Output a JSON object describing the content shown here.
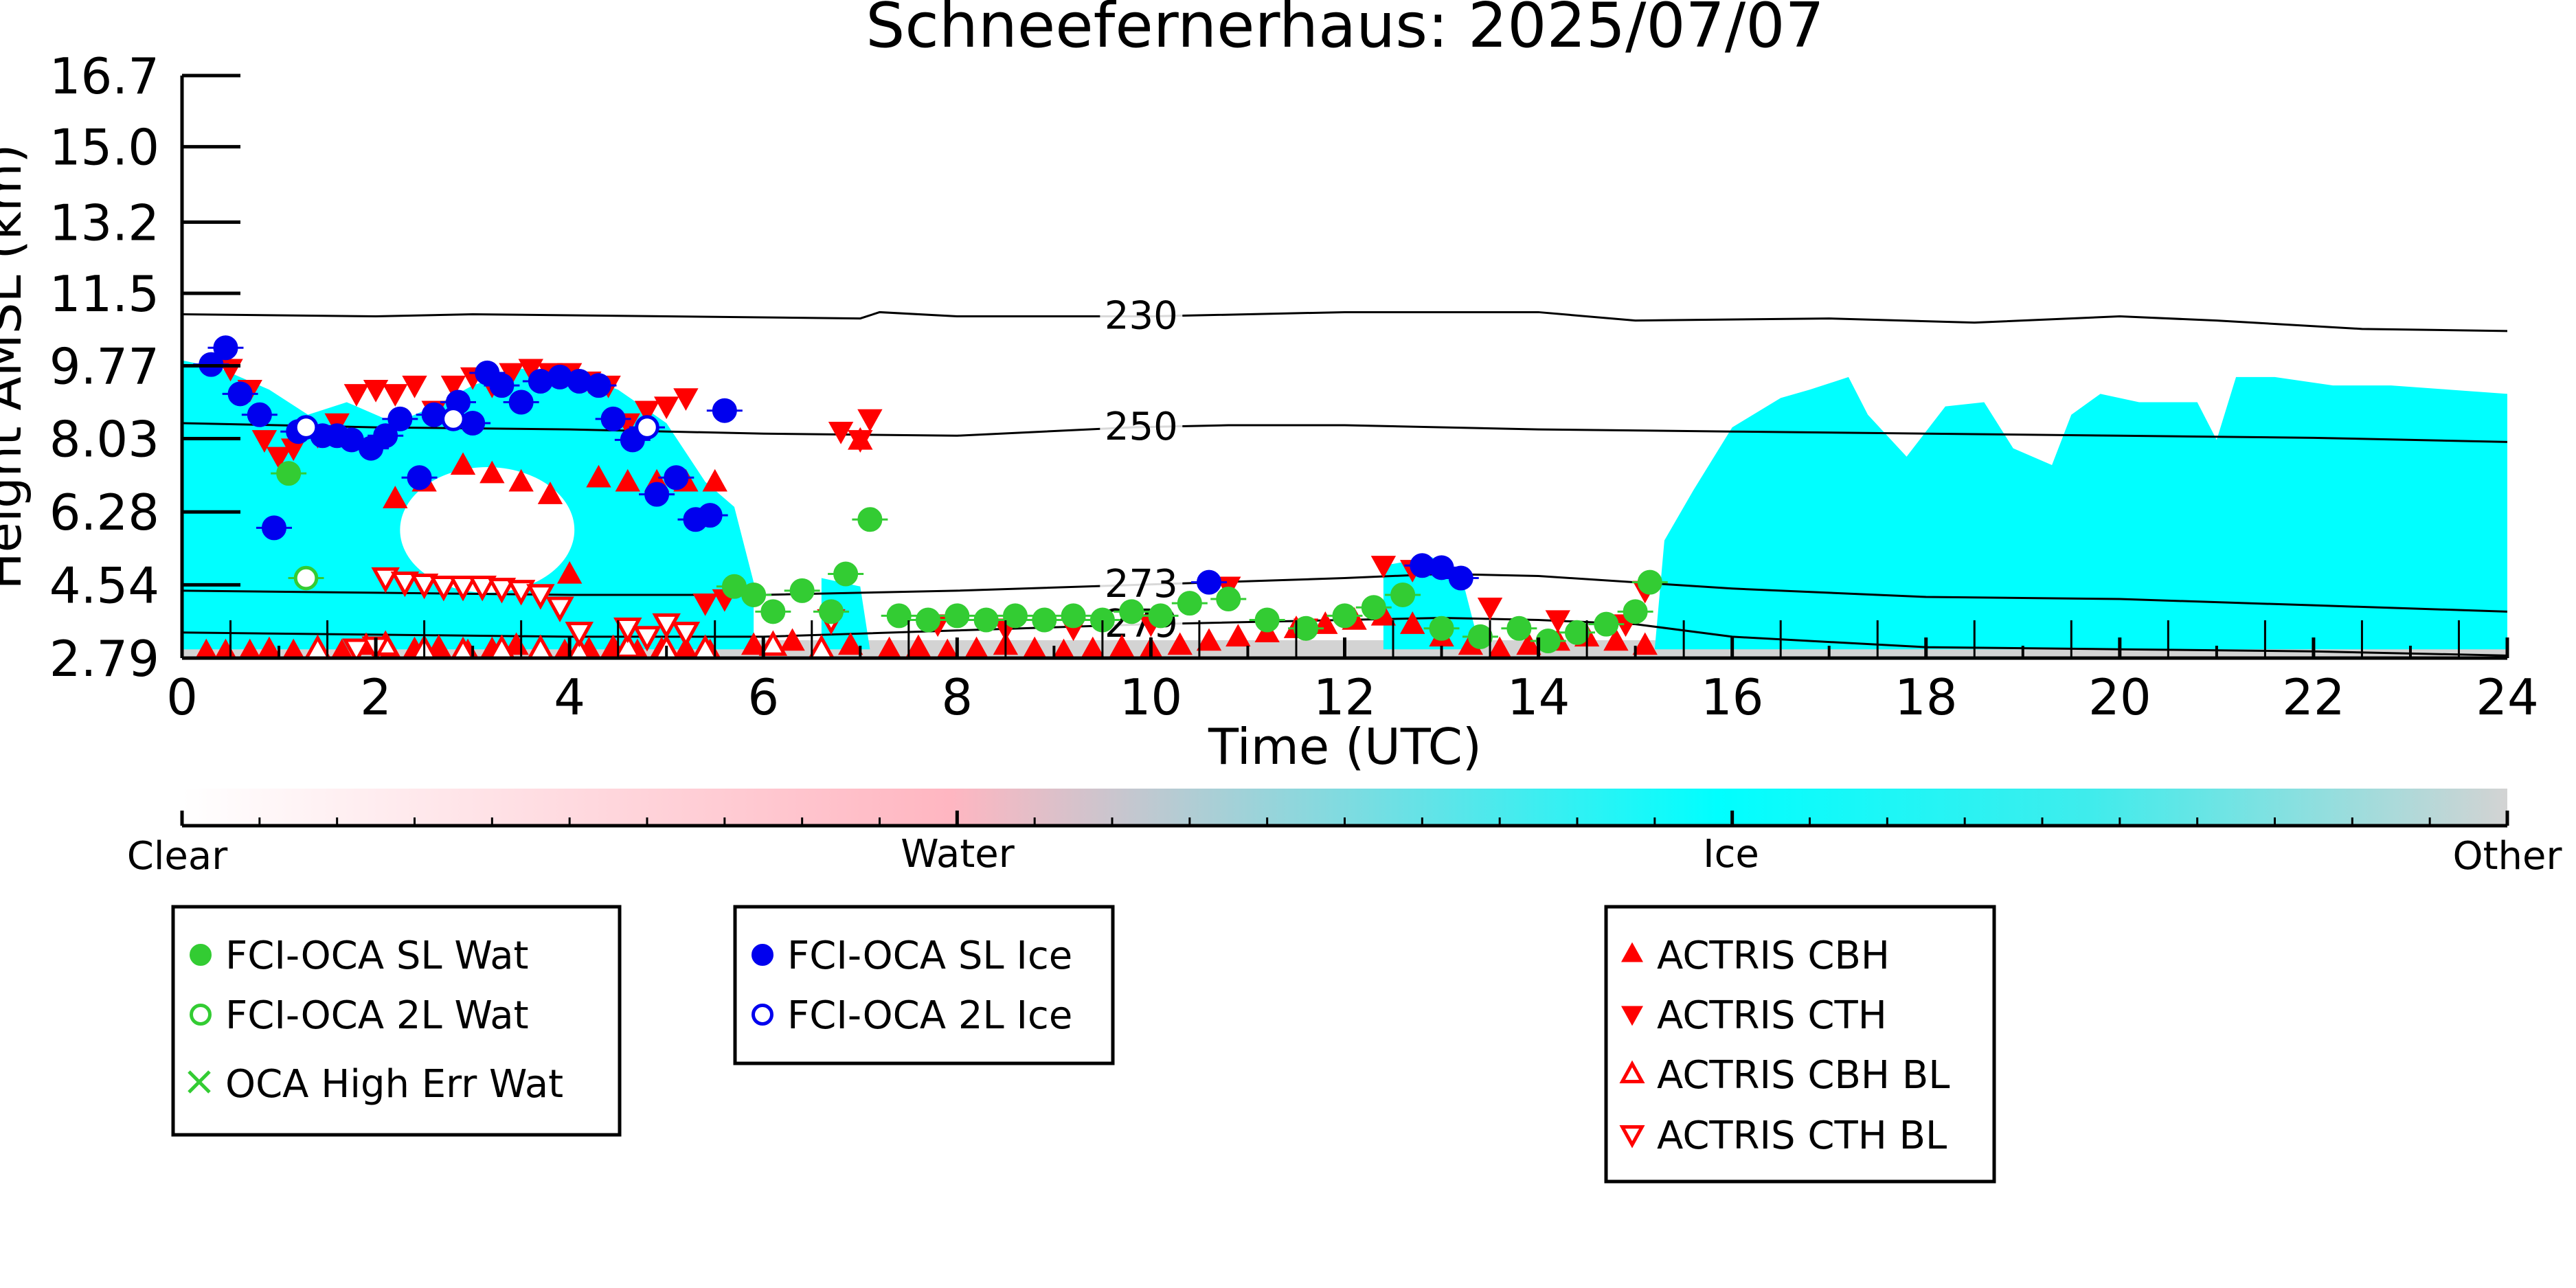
{
  "chart_data": {
    "type": "scatter",
    "title": "Schneefernerhaus: 2025/07/07",
    "xlabel": "Time (UTC)",
    "ylabel": "Height AMSL (km)",
    "xlim": [
      0,
      24
    ],
    "ylim": [
      2.79,
      16.7
    ],
    "x_ticks": [
      "0",
      "2",
      "4",
      "6",
      "8",
      "10",
      "12",
      "14",
      "16",
      "18",
      "20",
      "22",
      "24"
    ],
    "y_ticks": [
      "2.79",
      "4.54",
      "6.28",
      "8.03",
      "9.77",
      "11.5",
      "13.2",
      "15.0",
      "16.7"
    ],
    "y_tick_values": [
      2.79,
      4.54,
      6.28,
      8.03,
      9.77,
      11.5,
      13.2,
      15.0,
      16.7
    ],
    "colors": {
      "ice": "#00ffff",
      "water": "#ffb6c1",
      "other": "#d3d3d3",
      "oca_wat": "#33cc33",
      "oca_ice": "#0000ee",
      "actris": "#ff0000"
    },
    "colorbar": {
      "labels": [
        "Clear",
        "Water",
        "Ice",
        "Other"
      ]
    },
    "isotherms": [
      {
        "label": "230",
        "label_x": 9.9,
        "points": [
          [
            0,
            11.0
          ],
          [
            2,
            10.95
          ],
          [
            3,
            11.0
          ],
          [
            5,
            10.95
          ],
          [
            7,
            10.9
          ],
          [
            7.2,
            11.05
          ],
          [
            8,
            10.95
          ],
          [
            10,
            10.95
          ],
          [
            12,
            11.05
          ],
          [
            14,
            11.05
          ],
          [
            15,
            10.85
          ],
          [
            17,
            10.9
          ],
          [
            18.5,
            10.8
          ],
          [
            20,
            10.95
          ],
          [
            21,
            10.85
          ],
          [
            22.5,
            10.65
          ],
          [
            24,
            10.6
          ]
        ]
      },
      {
        "label": "250",
        "label_x": 9.9,
        "points": [
          [
            0,
            8.4
          ],
          [
            2,
            8.3
          ],
          [
            4,
            8.25
          ],
          [
            6,
            8.15
          ],
          [
            8,
            8.1
          ],
          [
            9.8,
            8.3
          ],
          [
            10.8,
            8.35
          ],
          [
            12,
            8.35
          ],
          [
            14,
            8.25
          ],
          [
            16,
            8.2
          ],
          [
            18,
            8.15
          ],
          [
            20,
            8.1
          ],
          [
            22,
            8.05
          ],
          [
            24,
            7.95
          ]
        ]
      },
      {
        "label": "273",
        "label_x": 9.9,
        "points": [
          [
            0,
            4.4
          ],
          [
            2,
            4.35
          ],
          [
            4,
            4.3
          ],
          [
            6,
            4.3
          ],
          [
            8,
            4.4
          ],
          [
            10,
            4.55
          ],
          [
            12,
            4.7
          ],
          [
            13,
            4.8
          ],
          [
            14,
            4.75
          ],
          [
            16,
            4.45
          ],
          [
            18,
            4.25
          ],
          [
            20,
            4.2
          ],
          [
            22,
            4.05
          ],
          [
            24,
            3.9
          ]
        ]
      },
      {
        "label": "279",
        "label_x": 9.9,
        "points": [
          [
            0,
            3.4
          ],
          [
            2,
            3.35
          ],
          [
            4,
            3.3
          ],
          [
            6,
            3.3
          ],
          [
            8,
            3.45
          ],
          [
            10,
            3.6
          ],
          [
            12,
            3.7
          ],
          [
            13,
            3.75
          ],
          [
            14,
            3.7
          ],
          [
            15,
            3.6
          ],
          [
            16,
            3.3
          ],
          [
            18,
            3.05
          ],
          [
            20,
            3.0
          ],
          [
            22,
            2.95
          ],
          [
            24,
            2.85
          ]
        ]
      }
    ],
    "series": [
      {
        "name": "FCI-OCA SL Wat",
        "marker": "filled-circle",
        "color": "#33cc33",
        "x": [
          1.1,
          5.7,
          5.9,
          6.1,
          6.4,
          6.7,
          6.85,
          7.1,
          7.4,
          7.7,
          8.0,
          8.3,
          8.6,
          8.9,
          9.2,
          9.5,
          9.8,
          10.1,
          10.4,
          10.8,
          11.2,
          11.6,
          12.0,
          12.3,
          12.6,
          13.0,
          13.4,
          13.8,
          14.1,
          14.4,
          14.7,
          15.0,
          15.15
        ],
        "y": [
          7.2,
          4.5,
          4.3,
          3.9,
          4.4,
          3.9,
          4.8,
          6.1,
          3.8,
          3.7,
          3.8,
          3.7,
          3.8,
          3.7,
          3.8,
          3.7,
          3.9,
          3.8,
          4.1,
          4.2,
          3.7,
          3.5,
          3.8,
          4.0,
          4.3,
          3.5,
          3.3,
          3.5,
          3.2,
          3.4,
          3.6,
          3.9,
          4.6
        ]
      },
      {
        "name": "FCI-OCA 2L Wat",
        "marker": "open-circle",
        "color": "#33cc33",
        "x": [
          1.28
        ],
        "y": [
          4.7
        ]
      },
      {
        "name": "OCA High Err Wat",
        "marker": "x",
        "color": "#33cc33",
        "x": [],
        "y": []
      },
      {
        "name": "FCI-OCA SL Ice",
        "marker": "filled-circle",
        "color": "#0000ee",
        "x": [
          0.3,
          0.45,
          0.6,
          0.8,
          0.95,
          1.2,
          1.45,
          1.6,
          1.75,
          1.95,
          2.1,
          2.25,
          2.45,
          2.6,
          2.85,
          3.0,
          3.15,
          3.3,
          3.5,
          3.7,
          3.9,
          4.1,
          4.3,
          4.45,
          4.65,
          4.9,
          5.1,
          5.3,
          5.45,
          5.6,
          10.6,
          12.8,
          13.0,
          13.2
        ],
        "y": [
          9.8,
          10.2,
          9.1,
          8.6,
          5.9,
          8.2,
          8.1,
          8.1,
          8.0,
          7.8,
          8.1,
          8.5,
          7.1,
          8.6,
          8.9,
          8.4,
          9.6,
          9.3,
          8.9,
          9.4,
          9.5,
          9.4,
          9.3,
          8.5,
          8.0,
          6.7,
          7.1,
          6.1,
          6.2,
          8.7,
          4.6,
          5.0,
          4.95,
          4.7
        ]
      },
      {
        "name": "FCI-OCA 2L Ice",
        "marker": "open-circle",
        "color": "#0000ee",
        "x": [
          1.28,
          2.8,
          4.8
        ],
        "y": [
          8.3,
          8.5,
          8.3
        ]
      },
      {
        "name": "ACTRIS CBH",
        "marker": "triangle-up",
        "color": "#ff0000",
        "x": [
          0.25,
          0.45,
          0.7,
          0.9,
          1.15,
          1.4,
          1.65,
          1.9,
          2.15,
          2.4,
          2.65,
          2.95,
          3.2,
          3.45,
          3.7,
          3.95,
          4.2,
          4.45,
          4.7,
          4.95,
          5.2,
          5.45,
          5.9,
          6.3,
          6.9,
          7.0,
          7.3,
          7.6,
          7.9,
          8.2,
          8.5,
          8.8,
          9.1,
          9.4,
          9.7,
          10.0,
          10.3,
          10.6,
          10.9,
          11.2,
          11.5,
          11.8,
          12.1,
          12.4,
          12.7,
          13.0,
          13.3,
          13.6,
          13.9,
          14.2,
          14.5,
          14.8,
          15.1,
          2.2,
          2.5,
          2.9,
          3.2,
          3.5,
          3.8,
          4.0,
          4.3,
          4.6,
          4.9,
          5.2,
          5.5
        ],
        "y": [
          2.95,
          2.95,
          2.95,
          3.0,
          2.95,
          3.0,
          2.95,
          3.1,
          2.95,
          3.0,
          3.05,
          2.95,
          3.0,
          3.1,
          3.0,
          2.95,
          3.0,
          3.05,
          2.95,
          3.0,
          3.0,
          2.95,
          3.1,
          3.2,
          3.1,
          8.0,
          3.0,
          3.05,
          2.95,
          3.0,
          3.1,
          3.0,
          2.95,
          3.0,
          3.05,
          3.0,
          3.1,
          3.2,
          3.3,
          3.4,
          3.5,
          3.6,
          3.7,
          3.8,
          3.6,
          3.3,
          3.1,
          3.0,
          3.1,
          3.2,
          3.3,
          3.2,
          3.1,
          6.6,
          7.0,
          7.4,
          7.2,
          7.0,
          6.7,
          4.8,
          7.1,
          7.0,
          7.0,
          7.0,
          7.0
        ]
      },
      {
        "name": "ACTRIS CTH",
        "marker": "triangle-down",
        "color": "#ff0000",
        "x": [
          0.5,
          0.7,
          0.85,
          1.0,
          1.15,
          1.4,
          1.6,
          1.8,
          2.0,
          2.2,
          2.4,
          2.6,
          2.8,
          3.0,
          3.2,
          3.4,
          3.6,
          3.8,
          4.0,
          4.2,
          4.4,
          4.6,
          4.8,
          5.0,
          5.2,
          5.4,
          5.6,
          6.8,
          7.0,
          7.1,
          7.8,
          8.5,
          9.2,
          10.0,
          10.8,
          11.6,
          12.4,
          12.7,
          13.5,
          14.2,
          14.9,
          15.1
        ],
        "y": [
          9.7,
          9.2,
          8.0,
          7.6,
          7.8,
          8.1,
          8.4,
          9.1,
          9.2,
          9.1,
          9.3,
          8.7,
          9.3,
          9.5,
          9.3,
          9.6,
          9.7,
          9.6,
          9.6,
          9.4,
          9.3,
          8.4,
          8.7,
          8.8,
          9.0,
          4.1,
          4.2,
          8.2,
          8.0,
          8.5,
          3.6,
          3.5,
          3.5,
          3.6,
          4.5,
          3.5,
          5.0,
          4.9,
          4.0,
          3.7,
          3.6,
          4.4
        ]
      },
      {
        "name": "ACTRIS CBH BL",
        "marker": "triangle-up-open",
        "color": "#ff0000",
        "x": [
          1.4,
          2.1,
          2.5,
          2.9,
          3.3,
          3.7,
          4.1,
          4.6,
          5.0,
          5.4,
          6.1,
          6.6
        ],
        "y": [
          3.0,
          3.1,
          3.0,
          2.95,
          3.0,
          3.0,
          2.95,
          3.05,
          3.0,
          3.0,
          3.1,
          3.0
        ]
      },
      {
        "name": "ACTRIS CTH BL",
        "marker": "triangle-down-open",
        "color": "#ff0000",
        "x": [
          2.1,
          2.3,
          2.5,
          2.7,
          2.9,
          3.1,
          3.3,
          3.5,
          3.7,
          3.9,
          4.1,
          4.6,
          4.8,
          5.0,
          5.2,
          6.7,
          1.8,
          2.0
        ],
        "y": [
          4.7,
          4.6,
          4.55,
          4.5,
          4.5,
          4.5,
          4.45,
          4.4,
          4.3,
          4.0,
          3.4,
          3.5,
          3.3,
          3.6,
          3.4,
          3.7,
          3.0,
          3.05
        ]
      }
    ],
    "legend_groups": [
      {
        "placement": "bottom-left",
        "items": [
          0,
          1,
          2
        ]
      },
      {
        "placement": "bottom-center-left",
        "items": [
          3,
          4
        ]
      },
      {
        "placement": "bottom-right",
        "items": [
          5,
          6,
          7,
          8
        ]
      }
    ],
    "cloud_regions": [
      {
        "class": "ice",
        "top": [
          [
            0,
            9.9
          ],
          [
            0.4,
            9.7
          ],
          [
            0.9,
            9.2
          ],
          [
            1.3,
            8.6
          ],
          [
            1.7,
            8.9
          ],
          [
            2.2,
            8.4
          ],
          [
            2.6,
            8.8
          ],
          [
            3.0,
            9.3
          ],
          [
            3.5,
            9.7
          ],
          [
            4.0,
            9.6
          ],
          [
            4.5,
            9.2
          ],
          [
            5.0,
            8.4
          ],
          [
            5.4,
            7.0
          ],
          [
            5.7,
            6.4
          ],
          [
            5.9,
            4.6
          ],
          [
            5.9,
            3.0
          ],
          [
            0,
            3.0
          ]
        ]
      },
      {
        "class": "ice",
        "top": [
          [
            6.6,
            4.7
          ],
          [
            7.0,
            4.5
          ],
          [
            7.1,
            3.0
          ],
          [
            6.6,
            3.0
          ]
        ]
      },
      {
        "class": "ice",
        "top": [
          [
            12.4,
            5.0
          ],
          [
            12.9,
            5.2
          ],
          [
            13.2,
            4.8
          ],
          [
            13.4,
            3.0
          ],
          [
            12.4,
            3.0
          ]
        ]
      },
      {
        "class": "ice",
        "top": [
          [
            15.3,
            5.6
          ],
          [
            15.6,
            6.8
          ],
          [
            16.0,
            8.3
          ],
          [
            16.5,
            9.0
          ],
          [
            16.8,
            9.2
          ],
          [
            17.2,
            9.5
          ],
          [
            17.4,
            8.6
          ],
          [
            17.8,
            7.6
          ],
          [
            18.2,
            8.8
          ],
          [
            18.6,
            8.9
          ],
          [
            18.9,
            7.8
          ],
          [
            19.3,
            7.4
          ],
          [
            19.5,
            8.6
          ],
          [
            19.8,
            9.1
          ],
          [
            20.2,
            8.9
          ],
          [
            20.8,
            8.9
          ],
          [
            21.0,
            8.0
          ],
          [
            21.2,
            9.5
          ],
          [
            21.6,
            9.5
          ],
          [
            22.2,
            9.3
          ],
          [
            22.8,
            9.3
          ],
          [
            23.4,
            9.2
          ],
          [
            24.0,
            9.1
          ],
          [
            24.0,
            3.0
          ],
          [
            15.2,
            3.0
          ]
        ]
      }
    ]
  }
}
